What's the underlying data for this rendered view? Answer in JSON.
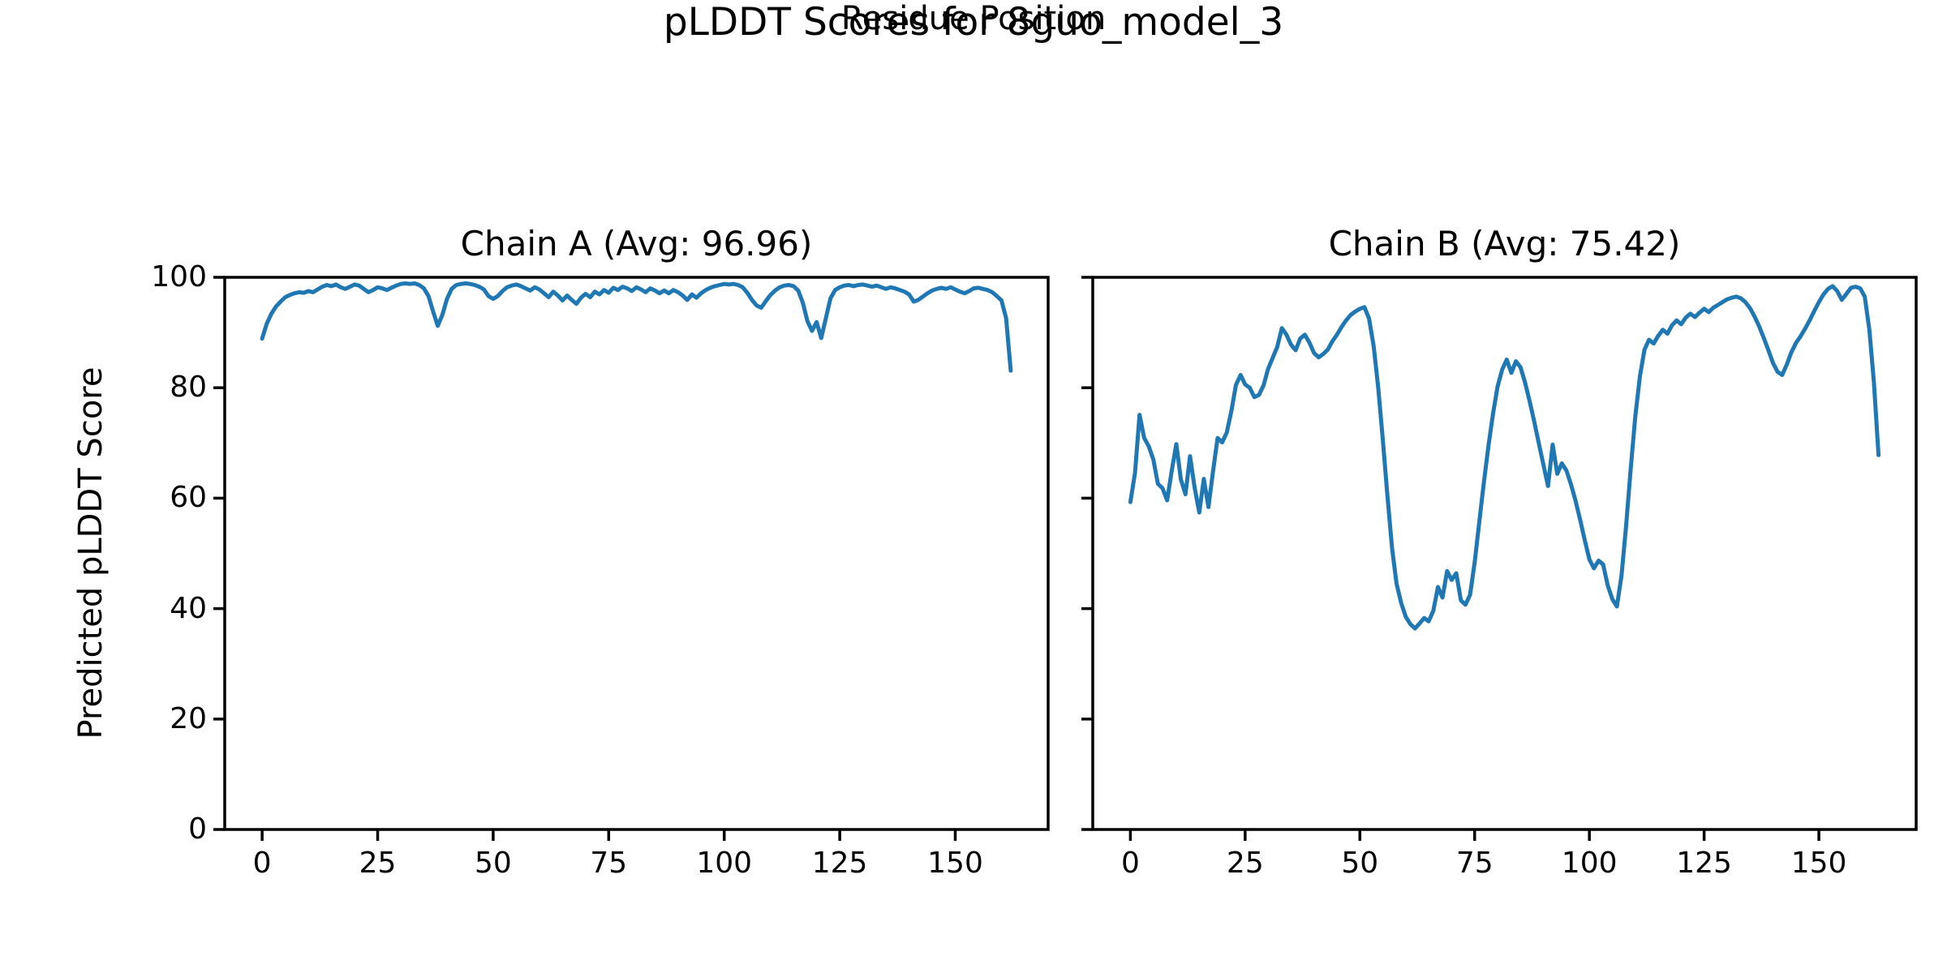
{
  "figure": {
    "suptitle": "pLDDT Scores for 8guo_model_3",
    "xlabel": "Residue Position",
    "ylabel": "Predicted pLDDT Score",
    "line_color": "#1f77b4",
    "axes_color": "#000000",
    "background_color": "#ffffff"
  },
  "chart_data": [
    {
      "type": "line",
      "title": "Chain A (Avg: 96.96)",
      "chain": "A",
      "avg_plddt": 96.96,
      "xlabel": "Residue Position",
      "ylabel": "Predicted pLDDT Score",
      "x_start": 0,
      "x_step": 1,
      "xlim": [
        -8.1,
        170.1
      ],
      "ylim": [
        0,
        100
      ],
      "xticks": [
        0,
        25,
        50,
        75,
        100,
        125,
        150
      ],
      "yticks": [
        0,
        20,
        40,
        60,
        80,
        100
      ],
      "grid": false,
      "legend": "none",
      "show_ytick_labels": true,
      "series": [
        {
          "name": "Chain A pLDDT",
          "values": [
            88.9,
            91.6,
            93.4,
            94.7,
            95.6,
            96.4,
            96.8,
            97.1,
            97.3,
            97.2,
            97.5,
            97.3,
            97.8,
            98.3,
            98.6,
            98.4,
            98.7,
            98.2,
            97.9,
            98.3,
            98.7,
            98.5,
            97.9,
            97.3,
            97.7,
            98.2,
            98.0,
            97.7,
            98.1,
            98.5,
            98.8,
            98.9,
            98.8,
            98.9,
            98.6,
            98.0,
            96.6,
            93.8,
            91.2,
            93.2,
            96.1,
            97.9,
            98.6,
            98.8,
            98.9,
            98.8,
            98.6,
            98.3,
            97.8,
            96.6,
            96.1,
            96.6,
            97.5,
            98.2,
            98.5,
            98.7,
            98.4,
            98.0,
            97.6,
            98.2,
            97.8,
            97.1,
            96.4,
            97.4,
            96.7,
            95.8,
            96.7,
            95.9,
            95.2,
            96.3,
            97.0,
            96.4,
            97.4,
            96.9,
            97.7,
            97.2,
            98.1,
            97.7,
            98.3,
            98.0,
            97.5,
            98.2,
            97.8,
            97.3,
            98.0,
            97.6,
            97.1,
            97.6,
            97.1,
            97.7,
            97.3,
            96.7,
            95.9,
            96.9,
            96.3,
            97.1,
            97.7,
            98.1,
            98.4,
            98.6,
            98.8,
            98.7,
            98.8,
            98.6,
            98.2,
            97.2,
            95.9,
            94.9,
            94.5,
            95.7,
            96.8,
            97.6,
            98.2,
            98.5,
            98.6,
            98.4,
            97.6,
            95.4,
            92.1,
            90.3,
            91.9,
            89.0,
            92.6,
            96.2,
            97.7,
            98.2,
            98.5,
            98.6,
            98.4,
            98.6,
            98.7,
            98.5,
            98.3,
            98.5,
            98.2,
            97.9,
            98.2,
            98.0,
            97.7,
            97.4,
            96.9,
            95.6,
            95.9,
            96.5,
            97.1,
            97.6,
            97.9,
            98.1,
            97.9,
            98.2,
            97.8,
            97.4,
            97.1,
            97.5,
            98.0,
            98.1,
            97.9,
            97.7,
            97.3,
            96.6,
            95.8,
            92.6,
            83.1
          ]
        }
      ]
    },
    {
      "type": "line",
      "title": "Chain B (Avg: 75.42)",
      "chain": "B",
      "avg_plddt": 75.42,
      "xlabel": "Residue Position",
      "ylabel": "Predicted pLDDT Score",
      "x_start": 0,
      "x_step": 1,
      "xlim": [
        -8.2,
        171.2
      ],
      "ylim": [
        0,
        100
      ],
      "xticks": [
        0,
        25,
        50,
        75,
        100,
        125,
        150
      ],
      "yticks": [
        0,
        20,
        40,
        60,
        80,
        100
      ],
      "grid": false,
      "legend": "none",
      "show_ytick_labels": false,
      "series": [
        {
          "name": "Chain B pLDDT",
          "values": [
            59.3,
            64.6,
            75.1,
            70.9,
            69.4,
            67.0,
            62.6,
            61.8,
            59.6,
            64.9,
            69.8,
            63.4,
            60.7,
            67.6,
            61.9,
            57.4,
            63.5,
            58.4,
            64.8,
            70.9,
            70.1,
            71.9,
            75.8,
            80.5,
            82.3,
            80.6,
            80.0,
            78.3,
            78.7,
            80.4,
            83.4,
            85.4,
            87.4,
            90.8,
            89.6,
            87.8,
            86.8,
            88.9,
            89.6,
            88.2,
            86.3,
            85.5,
            86.1,
            86.9,
            88.4,
            89.6,
            91.0,
            92.2,
            93.2,
            93.8,
            94.3,
            94.6,
            92.5,
            87.5,
            80.0,
            70.5,
            60.5,
            51.0,
            44.5,
            41.0,
            38.5,
            37.2,
            36.4,
            37.3,
            38.3,
            37.7,
            39.6,
            43.9,
            42.0,
            46.8,
            45.2,
            46.4,
            41.5,
            40.7,
            42.5,
            48.3,
            55.6,
            62.7,
            69.4,
            75.3,
            80.2,
            83.3,
            85.1,
            82.7,
            84.8,
            83.7,
            80.9,
            77.5,
            73.8,
            69.9,
            66.0,
            62.2,
            69.7,
            64.4,
            66.3,
            65.0,
            62.5,
            59.5,
            56.0,
            52.4,
            48.9,
            47.3,
            48.7,
            48.0,
            44.2,
            41.7,
            40.4,
            46.0,
            54.9,
            65.3,
            74.7,
            82.0,
            86.9,
            88.7,
            88.0,
            89.4,
            90.5,
            89.8,
            91.3,
            92.2,
            91.5,
            92.7,
            93.4,
            92.8,
            93.6,
            94.3,
            93.7,
            94.5,
            95.0,
            95.5,
            96.0,
            96.3,
            96.5,
            96.2,
            95.5,
            94.4,
            92.9,
            91.1,
            89.0,
            86.8,
            84.5,
            82.9,
            82.3,
            84.2,
            86.4,
            88.1,
            89.3,
            90.7,
            92.2,
            93.9,
            95.5,
            96.9,
            97.9,
            98.4,
            97.5,
            95.9,
            97.0,
            98.1,
            98.3,
            98.0,
            96.5,
            90.5,
            81.0,
            67.8
          ]
        }
      ]
    }
  ]
}
